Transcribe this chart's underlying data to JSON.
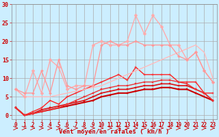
{
  "bg_color": "#cceeff",
  "grid_color": "#aaaaaa",
  "xlabel": "Vent moyen/en rafales ( km/h )",
  "xlabel_color": "#cc0000",
  "x_ticks": [
    0,
    1,
    2,
    3,
    4,
    5,
    6,
    7,
    8,
    9,
    10,
    11,
    12,
    13,
    14,
    15,
    16,
    17,
    18,
    19,
    20,
    21,
    22,
    23
  ],
  "ylim": [
    -1,
    30
  ],
  "yticks": [
    0,
    5,
    10,
    15,
    20,
    25,
    30
  ],
  "lines": [
    {
      "x": [
        0,
        1,
        2,
        3,
        4,
        5,
        6,
        7,
        8,
        9,
        10,
        11,
        12,
        13,
        14,
        15,
        16,
        17,
        18,
        19,
        20,
        21,
        22,
        23
      ],
      "y": [
        2,
        0,
        0.5,
        1,
        1.5,
        2,
        2.5,
        3,
        3.5,
        4,
        5,
        5.5,
        6,
        6,
        6.5,
        7,
        7,
        7.5,
        7.5,
        7,
        7,
        6,
        5,
        4
      ],
      "color": "#cc0000",
      "lw": 1.5,
      "marker": "s",
      "ms": 2.0
    },
    {
      "x": [
        0,
        1,
        2,
        3,
        4,
        5,
        6,
        7,
        8,
        9,
        10,
        11,
        12,
        13,
        14,
        15,
        16,
        17,
        18,
        19,
        20,
        21,
        22,
        23
      ],
      "y": [
        2,
        0,
        0.5,
        1.5,
        2,
        2.5,
        3,
        3.5,
        4,
        5,
        6,
        6.5,
        7,
        7,
        7.5,
        8,
        8,
        8.5,
        8.5,
        8,
        8,
        7,
        6,
        4
      ],
      "color": "#dd1111",
      "lw": 1.2,
      "marker": "s",
      "ms": 2.0
    },
    {
      "x": [
        0,
        1,
        2,
        3,
        4,
        5,
        6,
        7,
        8,
        9,
        10,
        11,
        12,
        13,
        14,
        15,
        16,
        17,
        18,
        19,
        20,
        21,
        22,
        23
      ],
      "y": [
        2,
        0,
        1,
        2,
        4,
        3,
        5,
        6,
        7,
        8,
        9,
        10,
        11,
        9.5,
        13,
        11,
        11,
        11,
        11,
        9,
        9,
        9,
        6,
        6
      ],
      "color": "#ff2222",
      "lw": 1.0,
      "marker": "+",
      "ms": 3.5
    },
    {
      "x": [
        0,
        1,
        2,
        3,
        4,
        5,
        6,
        7,
        8,
        9,
        10,
        11,
        12,
        13,
        14,
        15,
        16,
        17,
        18,
        19,
        20,
        21,
        22,
        23
      ],
      "y": [
        7,
        5,
        5,
        5,
        5,
        5.5,
        6,
        6.5,
        7,
        7.5,
        8,
        9,
        10,
        11,
        12,
        13,
        14,
        15,
        16,
        17,
        18,
        19,
        17,
        10
      ],
      "color": "#ffbbbb",
      "lw": 1.0,
      "marker": null,
      "ms": 0
    },
    {
      "x": [
        0,
        1,
        2,
        3,
        4,
        5,
        6,
        7,
        8,
        9,
        10,
        11,
        12,
        13,
        14,
        15,
        16,
        17,
        18,
        19,
        20,
        21,
        22,
        23
      ],
      "y": [
        7,
        5,
        12,
        6,
        15,
        13,
        7,
        8,
        8,
        19,
        20,
        19,
        19,
        20,
        27,
        22,
        27,
        24,
        19,
        19,
        15,
        17,
        12,
        9
      ],
      "color": "#ffaaaa",
      "lw": 1.0,
      "marker": "D",
      "ms": 2.5
    },
    {
      "x": [
        0,
        1,
        2,
        3,
        4,
        5,
        6,
        7,
        8,
        9,
        10,
        11,
        12,
        13,
        14,
        15,
        16,
        17,
        18,
        19,
        20,
        21,
        22,
        23
      ],
      "y": [
        7,
        6,
        6,
        12,
        6,
        15,
        8,
        7,
        8,
        8,
        19,
        20,
        19,
        19,
        20,
        19,
        19,
        19,
        19,
        16,
        15,
        17,
        12,
        9
      ],
      "color": "#ff9999",
      "lw": 1.0,
      "marker": "D",
      "ms": 2.0
    },
    {
      "x": [
        0,
        1,
        2,
        3,
        4,
        5,
        6,
        7,
        8,
        9,
        10,
        11,
        12,
        13,
        14,
        15,
        16,
        17,
        18,
        19,
        20,
        21,
        22,
        23
      ],
      "y": [
        2,
        0,
        0.5,
        1,
        1.5,
        2,
        3,
        4,
        5,
        6,
        7,
        7.5,
        8,
        8,
        8.5,
        9,
        9,
        9.5,
        9.5,
        9,
        8.5,
        7,
        6,
        4
      ],
      "color": "#ee3333",
      "lw": 1.0,
      "marker": "s",
      "ms": 1.8
    }
  ],
  "tick_color": "#cc0000",
  "tick_fontsize": 5.5
}
